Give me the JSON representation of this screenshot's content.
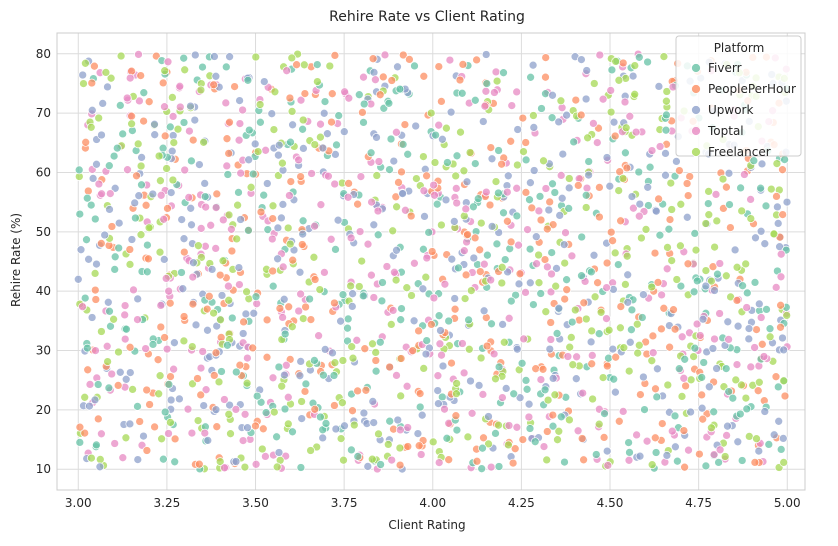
{
  "chart_data": {
    "type": "scatter",
    "title": "Rehire Rate vs Client Rating",
    "xlabel": "Client Rating",
    "ylabel": "Rehire Rate (%)",
    "xlim": [
      2.94,
      5.05
    ],
    "ylim": [
      6.5,
      83.5
    ],
    "xticks": [
      "3.00",
      "3.25",
      "3.50",
      "3.75",
      "4.00",
      "4.25",
      "4.50",
      "4.75",
      "5.00"
    ],
    "xtick_values": [
      3.0,
      3.25,
      3.5,
      3.75,
      4.0,
      4.25,
      4.5,
      4.75,
      5.0
    ],
    "yticks": [
      "10",
      "20",
      "30",
      "40",
      "50",
      "60",
      "70",
      "80"
    ],
    "ytick_values": [
      10,
      20,
      30,
      40,
      50,
      60,
      70,
      80
    ],
    "grid": true,
    "legend": {
      "title": "Platform",
      "placement": "top-right"
    },
    "series": [
      {
        "name": "Fiverr",
        "color": "#66c2a5",
        "count": 400,
        "x_range": [
          3.0,
          5.0
        ],
        "y_range": [
          10,
          80
        ]
      },
      {
        "name": "PeoplePerHour",
        "color": "#fc8d62",
        "count": 400,
        "x_range": [
          3.0,
          5.0
        ],
        "y_range": [
          10,
          80
        ]
      },
      {
        "name": "Upwork",
        "color": "#8da0cb",
        "count": 400,
        "x_range": [
          3.0,
          5.0
        ],
        "y_range": [
          10,
          80
        ]
      },
      {
        "name": "Toptal",
        "color": "#e78ac3",
        "count": 400,
        "x_range": [
          3.0,
          5.0
        ],
        "y_range": [
          10,
          80
        ]
      },
      {
        "name": "Freelancer",
        "color": "#a6d854",
        "count": 400,
        "x_range": [
          3.0,
          5.0
        ],
        "y_range": [
          10,
          80
        ]
      }
    ],
    "sample_points": [
      {
        "series": "Fiverr",
        "x": 4.12,
        "y": 61.5
      },
      {
        "series": "Fiverr",
        "x": 3.05,
        "y": 13.8
      },
      {
        "series": "Fiverr",
        "x": 4.86,
        "y": 78.2
      },
      {
        "series": "PeoplePerHour",
        "x": 3.22,
        "y": 79.6
      },
      {
        "series": "PeoplePerHour",
        "x": 4.97,
        "y": 15.3
      },
      {
        "series": "PeoplePerHour",
        "x": 3.02,
        "y": 64.1
      },
      {
        "series": "Upwork",
        "x": 3.33,
        "y": 79.8
      },
      {
        "series": "Upwork",
        "x": 4.99,
        "y": 30.1
      },
      {
        "series": "Upwork",
        "x": 3.0,
        "y": 42.0
      },
      {
        "series": "Toptal",
        "x": 3.17,
        "y": 79.9
      },
      {
        "series": "Toptal",
        "x": 4.85,
        "y": 70.6
      },
      {
        "series": "Toptal",
        "x": 3.79,
        "y": 11.5
      },
      {
        "series": "Freelancer",
        "x": 3.02,
        "y": 78.4
      },
      {
        "series": "Freelancer",
        "x": 4.57,
        "y": 78.0
      },
      {
        "series": "Freelancer",
        "x": 4.99,
        "y": 24.9
      }
    ]
  }
}
